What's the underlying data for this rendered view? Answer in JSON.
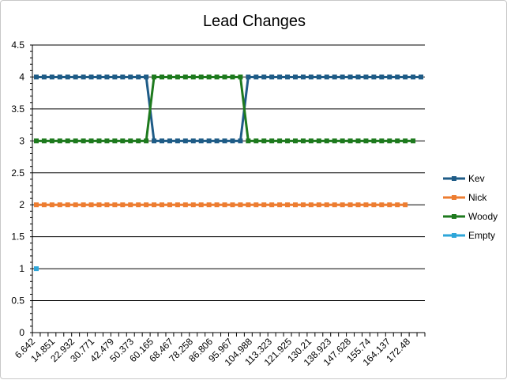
{
  "chart_data": {
    "type": "line",
    "title": "Lead Changes",
    "xlabel": "",
    "ylabel": "",
    "ylim": [
      0,
      4.5
    ],
    "ytick_step": 0.5,
    "yticks": [
      "0",
      "0.5",
      "1",
      "1.5",
      "2",
      "2.5",
      "3",
      "3.5",
      "4",
      "4.5"
    ],
    "x_label_values": [
      "6.642",
      "14.851",
      "22.932",
      "30.771",
      "42.479",
      "50.373",
      "60.165",
      "68.467",
      "78.258",
      "86.806",
      "95.967",
      "104.988",
      "113.323",
      "121.925",
      "130.21",
      "138.923",
      "147.628",
      "155.74",
      "164.137",
      "172.48"
    ],
    "x_categories_count": 50,
    "grid": true,
    "legend_position": "right",
    "series": [
      {
        "name": "Kev",
        "color": "#1F5C87",
        "values": [
          4,
          4,
          4,
          4,
          4,
          4,
          4,
          4,
          4,
          4,
          4,
          4,
          4,
          4,
          4,
          3,
          3,
          3,
          3,
          3,
          3,
          3,
          3,
          3,
          3,
          3,
          3,
          4,
          4,
          4,
          4,
          4,
          4,
          4,
          4,
          4,
          4,
          4,
          4,
          4,
          4,
          4,
          4,
          4,
          4,
          4,
          4,
          4,
          4,
          4
        ]
      },
      {
        "name": "Nick",
        "color": "#ED7D31",
        "values": [
          2,
          2,
          2,
          2,
          2,
          2,
          2,
          2,
          2,
          2,
          2,
          2,
          2,
          2,
          2,
          2,
          2,
          2,
          2,
          2,
          2,
          2,
          2,
          2,
          2,
          2,
          2,
          2,
          2,
          2,
          2,
          2,
          2,
          2,
          2,
          2,
          2,
          2,
          2,
          2,
          2,
          2,
          2,
          2,
          2,
          2,
          2,
          2
        ]
      },
      {
        "name": "Woody",
        "color": "#1E7A1E",
        "values": [
          3,
          3,
          3,
          3,
          3,
          3,
          3,
          3,
          3,
          3,
          3,
          3,
          3,
          3,
          3,
          4,
          4,
          4,
          4,
          4,
          4,
          4,
          4,
          4,
          4,
          4,
          4,
          3,
          3,
          3,
          3,
          3,
          3,
          3,
          3,
          3,
          3,
          3,
          3,
          3,
          3,
          3,
          3,
          3,
          3,
          3,
          3,
          3,
          3
        ]
      },
      {
        "name": "Empty",
        "color": "#2EA6D9",
        "values": [
          1
        ]
      }
    ]
  }
}
